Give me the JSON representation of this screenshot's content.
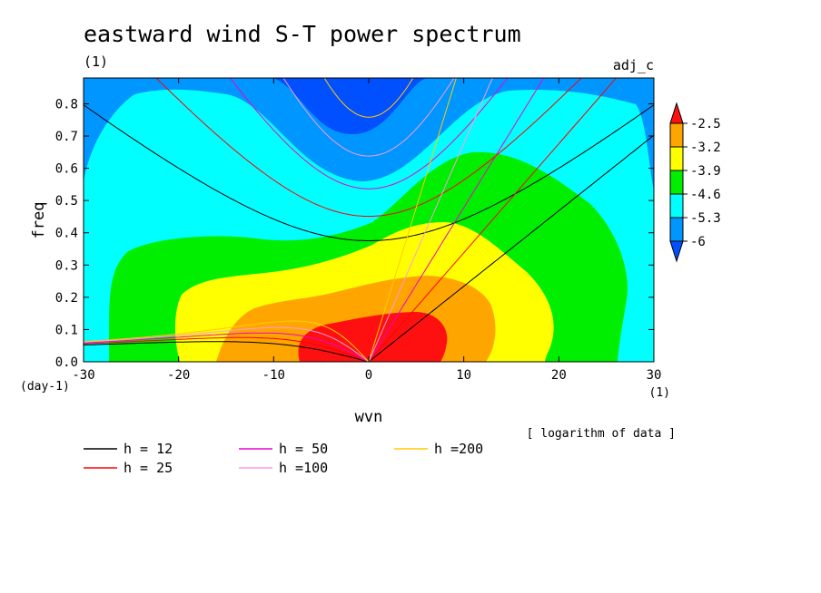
{
  "chart_data": {
    "type": "heatmap",
    "title": "eastward wind S-T power spectrum",
    "subtitle_left": "(1)",
    "subtitle_right": "adj_c",
    "xlabel": "wvn",
    "ylabel": "freq",
    "x_unit": "(1)",
    "y_unit": "(day-1)",
    "xlim": [
      -30,
      30
    ],
    "ylim": [
      0,
      0.88
    ],
    "x_ticks": [
      -30,
      -20,
      -10,
      0,
      10,
      20,
      30
    ],
    "y_ticks": [
      0.0,
      0.1,
      0.2,
      0.3,
      0.4,
      0.5,
      0.6,
      0.7,
      0.8
    ],
    "note": "[ logarithm of data ]",
    "colorbar": {
      "levels": [
        -2.5,
        -3.2,
        -3.9,
        -4.6,
        -5.3,
        -6
      ],
      "colors": [
        "#ff1010",
        "#ffa500",
        "#ffff00",
        "#00ee00",
        "#00ffff",
        "#0096ff",
        "#0050ff"
      ]
    },
    "dispersion_curves": [
      {
        "label": "h = 12",
        "h": 12,
        "color": "#000000"
      },
      {
        "label": "h = 25",
        "h": 25,
        "color": "#ff0000"
      },
      {
        "label": "h = 50",
        "h": 50,
        "color": "#ee00cc"
      },
      {
        "label": "h =100",
        "h": 100,
        "color": "#ff99dd"
      },
      {
        "label": "h =200",
        "h": 200,
        "color": "#ffcc00"
      }
    ]
  }
}
